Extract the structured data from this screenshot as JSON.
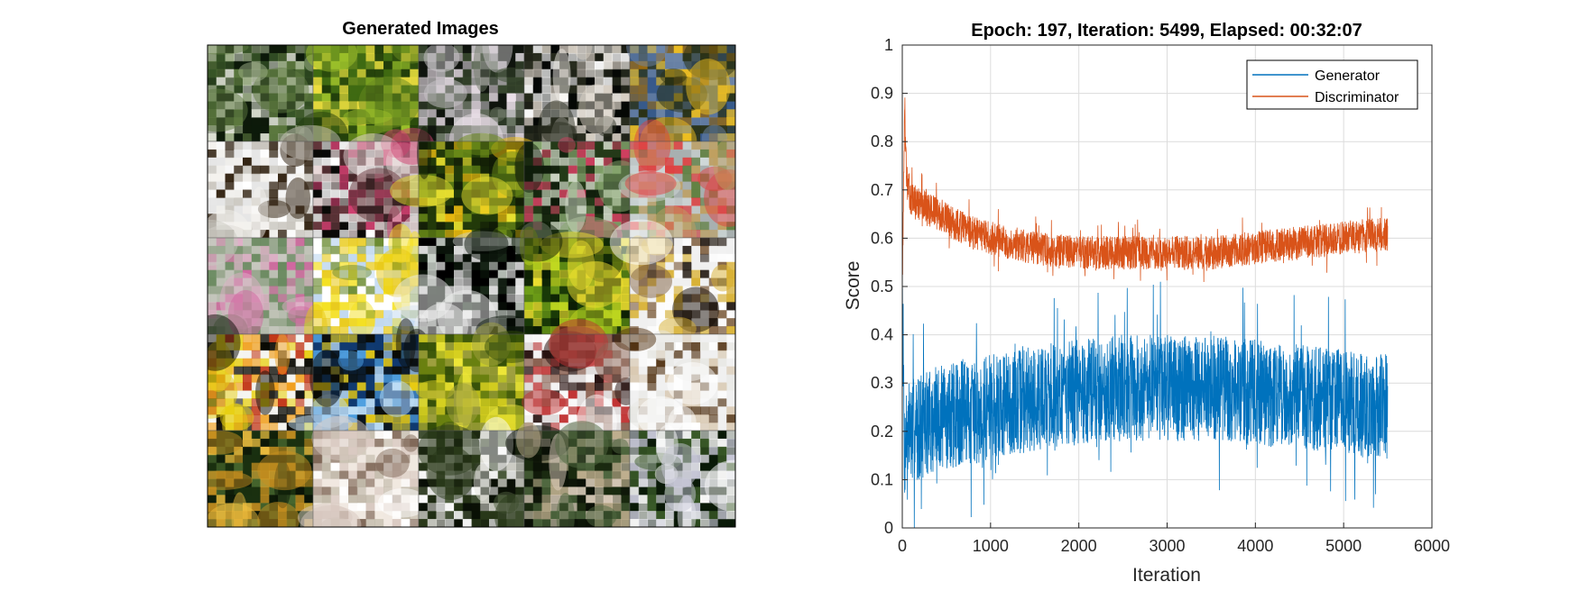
{
  "left_panel": {
    "title": "Generated Images",
    "grid": {
      "rows": 5,
      "cols": 5
    }
  },
  "colors": {
    "generator": "#0072BD",
    "discriminator": "#D95319",
    "grid_line": "#dcdcdc",
    "axis": "#262626"
  },
  "chart_data": {
    "type": "line",
    "title": "Epoch: 197, Iteration: 5499, Elapsed: 00:32:07",
    "xlabel": "Iteration",
    "ylabel": "Score",
    "xlim": [
      0,
      6000
    ],
    "ylim": [
      0,
      1
    ],
    "xticks": [
      0,
      1000,
      2000,
      3000,
      4000,
      5000,
      6000
    ],
    "yticks": [
      0,
      0.1,
      0.2,
      0.3,
      0.4,
      0.5,
      0.6,
      0.7,
      0.8,
      0.9,
      1
    ],
    "grid": true,
    "legend_position": "top-right",
    "series": [
      {
        "name": "Generator",
        "x": [
          0,
          25,
          50,
          100,
          200,
          300,
          500,
          800,
          1000,
          1500,
          2000,
          2500,
          3000,
          3500,
          4000,
          4500,
          5000,
          5499
        ],
        "values": [
          0.5,
          0.15,
          0.2,
          0.2,
          0.21,
          0.22,
          0.23,
          0.24,
          0.25,
          0.27,
          0.28,
          0.29,
          0.29,
          0.29,
          0.28,
          0.27,
          0.26,
          0.25
        ]
      },
      {
        "name": "Discriminator",
        "x": [
          0,
          25,
          50,
          100,
          200,
          300,
          500,
          800,
          1000,
          1500,
          2000,
          2500,
          3000,
          3500,
          4000,
          4500,
          5000,
          5499
        ],
        "values": [
          0.5,
          0.85,
          0.72,
          0.68,
          0.67,
          0.66,
          0.64,
          0.61,
          0.6,
          0.58,
          0.57,
          0.57,
          0.57,
          0.57,
          0.58,
          0.59,
          0.6,
          0.61
        ]
      }
    ]
  }
}
